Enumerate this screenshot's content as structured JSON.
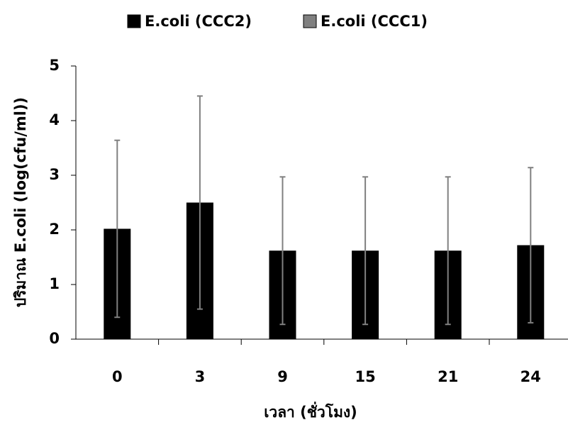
{
  "chart_data": {
    "type": "bar",
    "x_label": "เวลา (ชั่วโมง)",
    "y_label": "ปริมาณ E.coli (log(cfu/ml))",
    "categories": [
      "0",
      "3",
      "9",
      "15",
      "21",
      "24"
    ],
    "series": [
      {
        "name": "E.coli (CCC2)",
        "color": "#000000",
        "values": [
          2.02,
          2.5,
          1.62,
          1.62,
          1.62,
          1.72
        ],
        "errors": [
          1.62,
          1.95,
          1.35,
          1.35,
          1.35,
          1.42
        ],
        "error_color": "#808080"
      },
      {
        "name": "E.coli (CCC1)",
        "color": "#808080",
        "values": [
          null,
          null,
          null,
          null,
          null,
          null
        ]
      }
    ],
    "ylim": [
      0,
      5
    ],
    "yticks": [
      0,
      1,
      2,
      3,
      4,
      5
    ],
    "grid": false,
    "legend": "top"
  }
}
